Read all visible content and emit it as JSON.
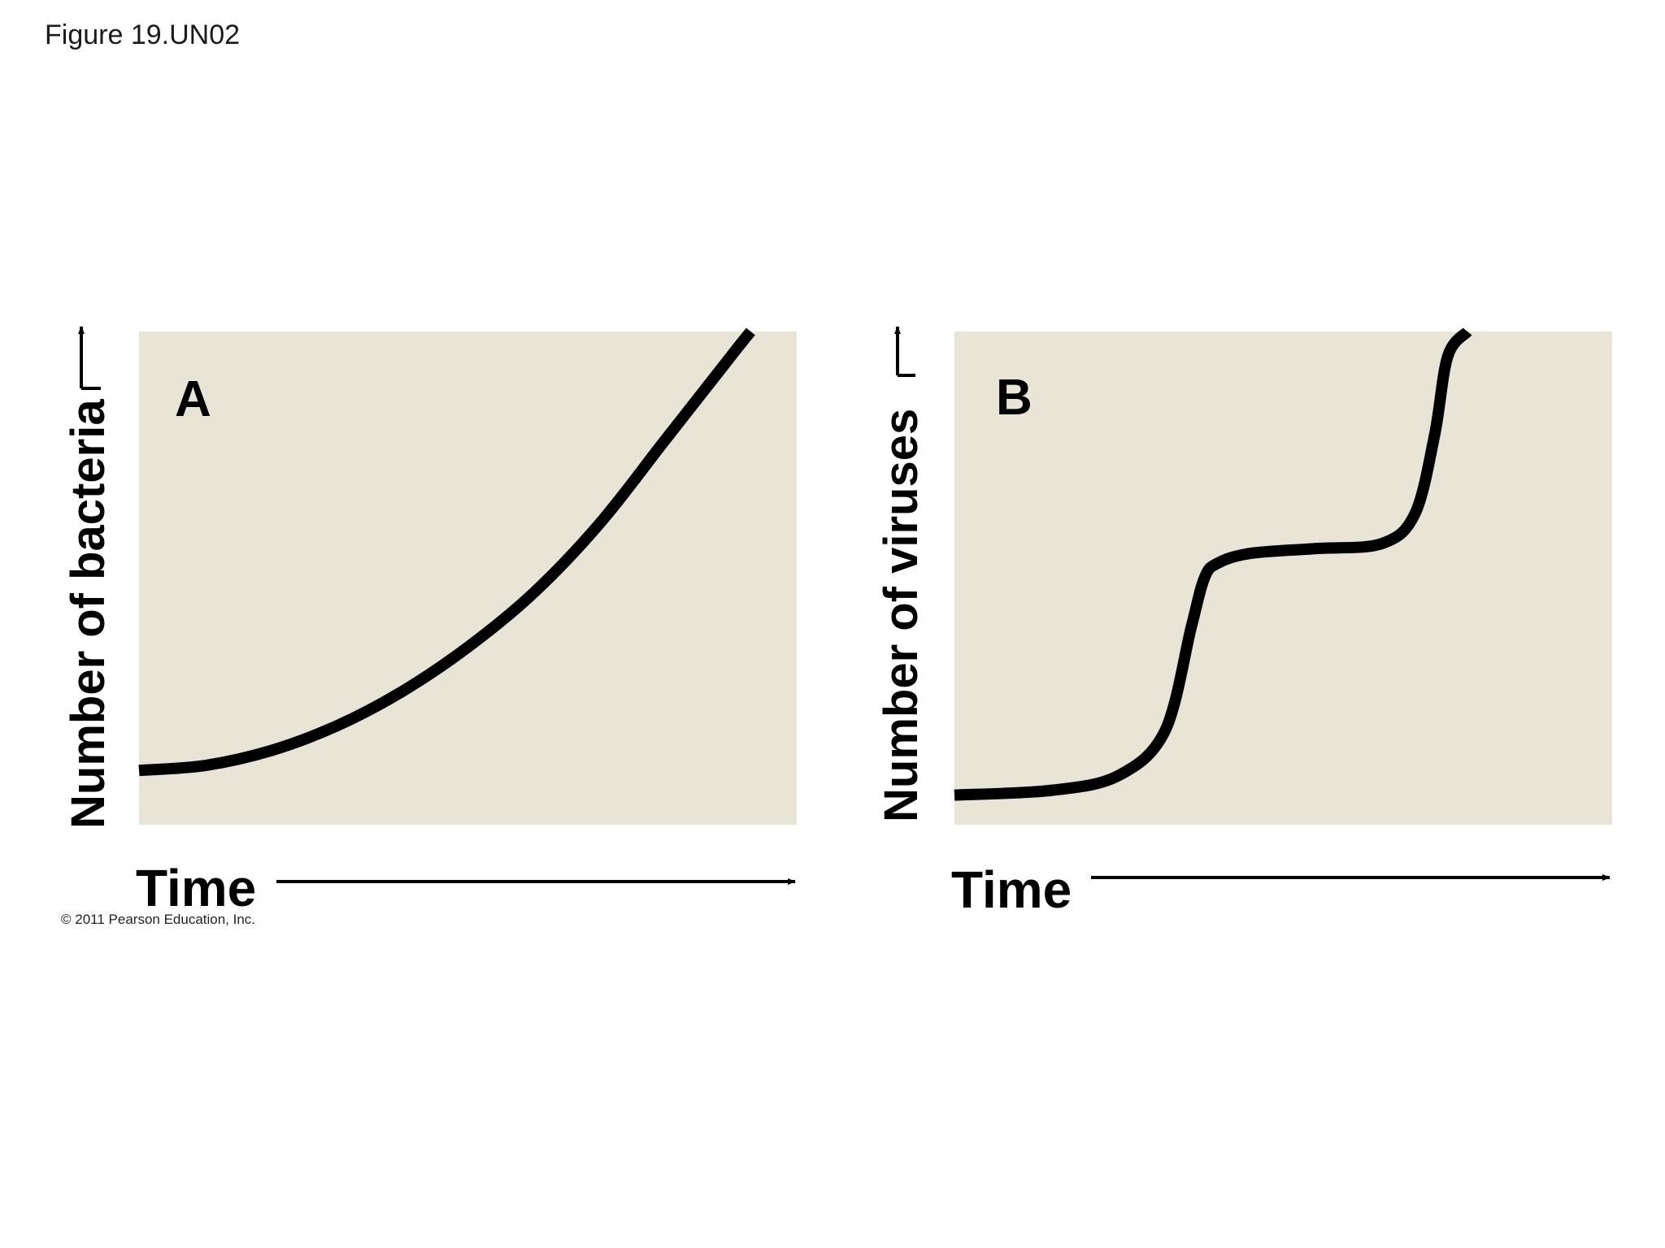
{
  "figure_title": "Figure 19.UN02",
  "copyright": "© 2011 Pearson Education, Inc.",
  "colors": {
    "panel_background": "#e9e5d6",
    "curve": "#000000",
    "arrow": "#000000"
  },
  "chart_data": [
    {
      "type": "line",
      "panel_label": "A",
      "xlabel": "Time",
      "ylabel": "Number of bacteria",
      "xlim": [
        0,
        1
      ],
      "ylim": [
        0,
        1
      ],
      "grid": false,
      "x": [
        0,
        0.1,
        0.2,
        0.3,
        0.4,
        0.5,
        0.6,
        0.7,
        0.8,
        0.9,
        0.93
      ],
      "y": [
        0.11,
        0.12,
        0.15,
        0.2,
        0.27,
        0.36,
        0.47,
        0.61,
        0.78,
        0.95,
        1.0
      ]
    },
    {
      "type": "line",
      "panel_label": "B",
      "xlabel": "Time",
      "ylabel": "Number of viruses",
      "xlim": [
        0,
        1
      ],
      "ylim": [
        0,
        1
      ],
      "grid": false,
      "x": [
        0,
        0.15,
        0.25,
        0.32,
        0.36,
        0.38,
        0.4,
        0.45,
        0.55,
        0.65,
        0.7,
        0.73,
        0.75,
        0.78
      ],
      "y": [
        0.06,
        0.07,
        0.1,
        0.19,
        0.4,
        0.5,
        0.53,
        0.55,
        0.56,
        0.57,
        0.63,
        0.79,
        0.95,
        1.0
      ]
    }
  ]
}
